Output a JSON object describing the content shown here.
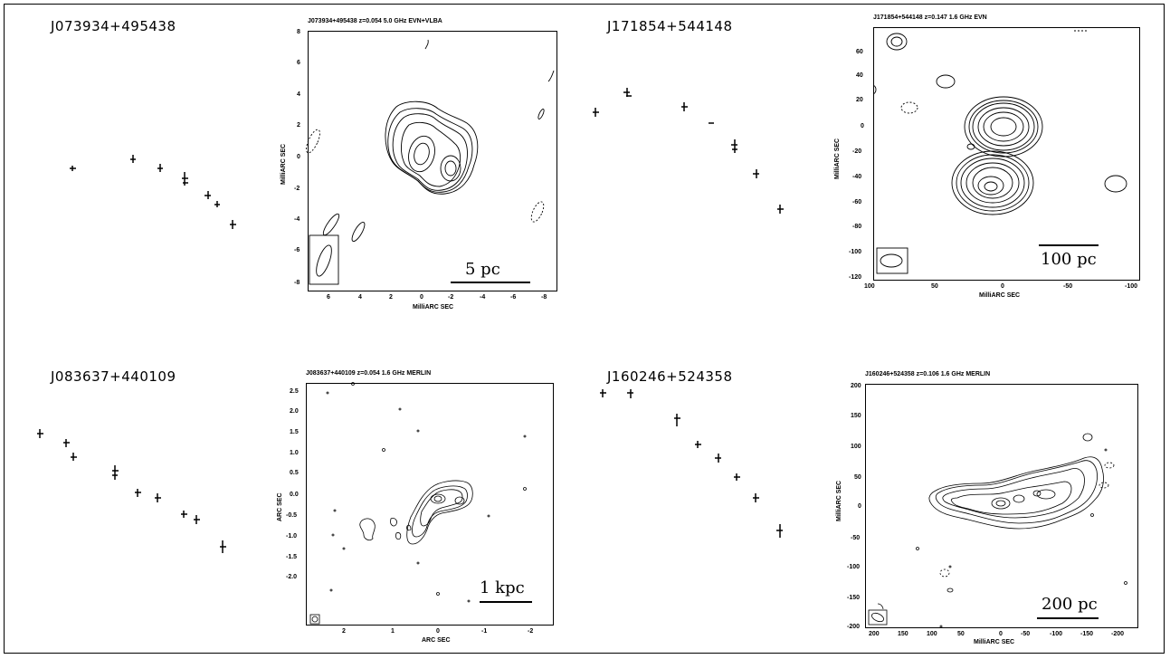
{
  "panels": [
    {
      "source": "J073934+495438",
      "header": "J073934+495438 z=0.054  5.0 GHz EVN+VLBA",
      "ylabel": "MilliARC SEC",
      "xlabel": "MilliARC SEC",
      "yticks": [
        "8",
        "6",
        "4",
        "2",
        "0",
        "-2",
        "-4",
        "-6",
        "-8"
      ],
      "xticks": [
        "6",
        "4",
        "2",
        "0",
        "-2",
        "-4",
        "-6",
        "-8"
      ],
      "scale": "5 pc"
    },
    {
      "source": "J171854+544148",
      "header": "J171854+544148 z=0.147  1.6 GHz EVN",
      "ylabel": "MilliARC SEC",
      "xlabel": "MilliARC SEC",
      "yticks": [
        "60",
        "40",
        "20",
        "0",
        "-20",
        "-40",
        "-60",
        "-80",
        "-100",
        "-120"
      ],
      "xticks": [
        "100",
        "50",
        "0",
        "-50",
        "-100"
      ],
      "scale": "100 pc"
    },
    {
      "source": "J083637+440109",
      "header": "J083637+440109 z=0.054 1.6 GHz MERLIN",
      "ylabel": "ARC SEC",
      "xlabel": "ARC SEC",
      "yticks": [
        "2.5",
        "2.0",
        "1.5",
        "1.0",
        "0.5",
        "0.0",
        "-0.5",
        "-1.0",
        "-1.5",
        "-2.0"
      ],
      "xticks": [
        "2",
        "1",
        "0",
        "-1",
        "-2"
      ],
      "scale": "1 kpc"
    },
    {
      "source": "J160246+524358",
      "header": "J160246+524358 z=0.106  1.6 GHz MERLIN",
      "ylabel": "MilliARC SEC",
      "xlabel": "MilliARC SEC",
      "yticks": [
        "200",
        "150",
        "100",
        "50",
        "0",
        "-50",
        "-100",
        "-150",
        "-200"
      ],
      "xticks": [
        "200",
        "150",
        "100",
        "50",
        "0",
        "-50",
        "-100",
        "-150",
        "-200"
      ],
      "scale": "200 pc"
    }
  ]
}
